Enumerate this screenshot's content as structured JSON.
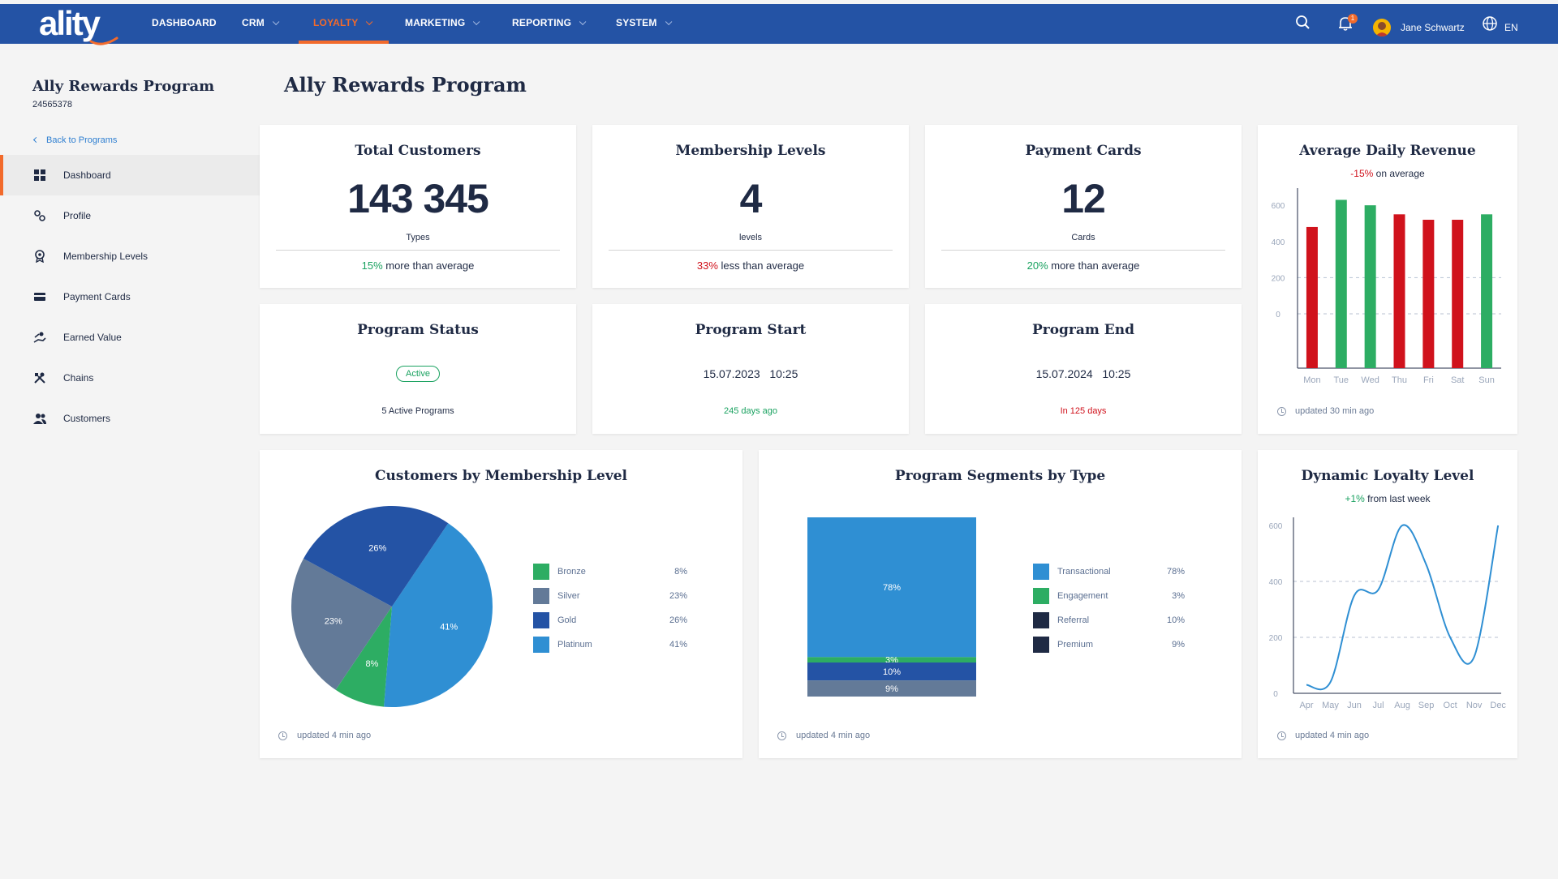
{
  "colors": {
    "brand": "#2453a5",
    "accent": "#f26a2b",
    "green": "#2dad63",
    "red": "#d0121c",
    "slate": "#637a98",
    "navy": "#2453a5",
    "blue": "#2f8fd3",
    "dark": "#1f2a44"
  },
  "header": {
    "logo_text": "ality",
    "nav": [
      {
        "label": "DASHBOARD",
        "has_menu": false
      },
      {
        "label": "CRM",
        "has_menu": true
      },
      {
        "label": "LOYALTY",
        "has_menu": true
      },
      {
        "label": "MARKETING",
        "has_menu": true
      },
      {
        "label": "REPORTING",
        "has_menu": true
      },
      {
        "label": "SYSTEM",
        "has_menu": true
      }
    ],
    "active_nav": "LOYALTY",
    "search_icon": "search-icon",
    "notifications_icon": "bell-icon",
    "notification_count": "1",
    "user_name": "Jane Schwartz",
    "language_icon": "globe-icon",
    "language": "EN"
  },
  "sidebar": {
    "program_name": "Ally Rewards Program",
    "program_id": "24565378",
    "back_link": "Back to Programs",
    "items": [
      {
        "label": "Dashboard",
        "icon": "grid-icon",
        "active": true
      },
      {
        "label": "Profile",
        "icon": "gears-icon",
        "active": false
      },
      {
        "label": "Membership Levels",
        "icon": "award-icon",
        "active": false
      },
      {
        "label": "Payment Cards",
        "icon": "credit-card-icon",
        "active": false
      },
      {
        "label": "Earned Value",
        "icon": "hand-coins-icon",
        "active": false
      },
      {
        "label": "Chains",
        "icon": "tools-icon",
        "active": false
      },
      {
        "label": "Customers",
        "icon": "people-icon",
        "active": false
      }
    ]
  },
  "main": {
    "title": "Ally Rewards Program",
    "stats": [
      {
        "title": "Total Customers",
        "value": "143 345",
        "unit": "Types",
        "pct": "15%",
        "pct_color": "green",
        "text": " more than average"
      },
      {
        "title": "Membership Levels",
        "value": "4",
        "unit": "levels",
        "pct": "33%",
        "pct_color": "red",
        "text": " less than average"
      },
      {
        "title": "Payment Cards",
        "value": "12",
        "unit": "Cards",
        "pct": "20%",
        "pct_color": "green",
        "text": " more than average"
      }
    ],
    "program_status": {
      "title": "Program Status",
      "status": "Active",
      "note": "5 Active Programs"
    },
    "program_start": {
      "title": "Program Start",
      "date": "15.07.2023",
      "time": "10:25",
      "note": "245 days ago"
    },
    "program_end": {
      "title": "Program End",
      "date": "15.07.2024",
      "time": "10:25",
      "note": "In 125 days"
    },
    "revenue": {
      "title": "Average Daily Revenue",
      "pct": "-15%",
      "text": " on average",
      "updated": "updated 30 min ago"
    },
    "membership": {
      "title": "Customers by Membership Level",
      "updated": "updated 4 min ago"
    },
    "segments": {
      "title": "Program Segments by Type",
      "updated": "updated 4 min ago"
    },
    "loyalty": {
      "title": "Dynamic Loyalty Level",
      "pct": "+1%",
      "text": " from last week",
      "updated": "updated 4 min ago"
    }
  },
  "chart_data": [
    {
      "type": "bar",
      "title": "Average Daily Revenue",
      "categories": [
        "Mon",
        "Tue",
        "Wed",
        "Thu",
        "Fri",
        "Sat",
        "Sun"
      ],
      "values": [
        480,
        630,
        600,
        550,
        520,
        520,
        550
      ],
      "bar_colors": [
        "red",
        "green",
        "green",
        "red",
        "red",
        "red",
        "green"
      ],
      "yticks": [
        600,
        400,
        200,
        0
      ],
      "ylim": [
        -300,
        650
      ],
      "grid": "dashed"
    },
    {
      "type": "pie",
      "title": "Customers by Membership Level",
      "slices": [
        {
          "label": "Bronze",
          "value": 8,
          "display": "8%",
          "color": "#2dad63"
        },
        {
          "label": "Silver",
          "value": 23,
          "display": "23%",
          "color": "#637a98"
        },
        {
          "label": "Gold",
          "value": 26,
          "display": "26%",
          "color": "#2453a5"
        },
        {
          "label": "Platinum",
          "value": 41,
          "display": "41%",
          "color": "#2f8fd3"
        }
      ]
    },
    {
      "type": "bar",
      "title": "Program Segments by Type",
      "stacked": true,
      "segments": [
        {
          "label": "Transactional",
          "value": 78,
          "display": "78%",
          "color": "#2f8fd3"
        },
        {
          "label": "Engagement",
          "value": 3,
          "display": "3%",
          "color": "#2dad63"
        },
        {
          "label": "Referral",
          "value": 10,
          "display": "10%",
          "color": "#2453a5"
        },
        {
          "label": "Premium",
          "value": 9,
          "display": "9%",
          "color": "#637a98"
        }
      ],
      "legend_colors": [
        "#2f8fd3",
        "#2dad63",
        "#1f2a44",
        "#1f2a44"
      ]
    },
    {
      "type": "line",
      "title": "Dynamic Loyalty Level",
      "x": [
        "Apr",
        "May",
        "Jun",
        "Jul",
        "Aug",
        "Sep",
        "Oct",
        "Nov",
        "Dec"
      ],
      "values": [
        30,
        40,
        350,
        370,
        600,
        460,
        200,
        130,
        600
      ],
      "yticks": [
        600,
        400,
        200,
        0
      ],
      "ylim": [
        0,
        600
      ],
      "grid": "dashed"
    }
  ]
}
